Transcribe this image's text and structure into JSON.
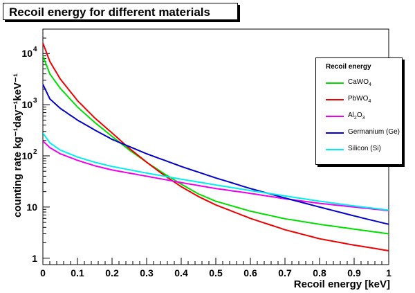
{
  "title": "Recoil energy for different materials",
  "chart_data": {
    "type": "line",
    "title": "Recoil energy for different materials",
    "xlabel": "Recoil energy [keV]",
    "ylabel": "counting rate kg⁻¹day⁻¹keV⁻¹",
    "xlim": [
      0,
      1
    ],
    "ylim": [
      0.75,
      30000
    ],
    "yscale": "log",
    "x_ticks": [
      "0",
      "0.1",
      "0.2",
      "0.3",
      "0.4",
      "0.5",
      "0.6",
      "0.7",
      "0.8",
      "0.9",
      "1"
    ],
    "y_ticks": [
      {
        "value": 1,
        "label": "1"
      },
      {
        "value": 10,
        "label": "10"
      },
      {
        "value": 100,
        "label": "10",
        "exp": "2"
      },
      {
        "value": 1000,
        "label": "10",
        "exp": "3"
      },
      {
        "value": 10000,
        "label": "10",
        "exp": "4"
      }
    ],
    "legend_title": "Recoil energy",
    "legend_position": "right",
    "series": [
      {
        "name": "CaWO4",
        "label_main": "CaWO",
        "label_sub": "4",
        "color": "#00dd00",
        "x": [
          0,
          0.02,
          0.05,
          0.1,
          0.15,
          0.2,
          0.25,
          0.3,
          0.35,
          0.4,
          0.45,
          0.5,
          0.6,
          0.7,
          0.8,
          0.9,
          1.0
        ],
        "y": [
          9000,
          4000,
          2100,
          900,
          450,
          240,
          130,
          75,
          45,
          28,
          18,
          13,
          8.3,
          5.9,
          4.6,
          3.7,
          3.0
        ]
      },
      {
        "name": "PbWO4",
        "label_main": "PbWO",
        "label_sub": "4",
        "color": "#ee0000",
        "x": [
          0,
          0.02,
          0.05,
          0.1,
          0.15,
          0.2,
          0.25,
          0.3,
          0.35,
          0.4,
          0.45,
          0.5,
          0.6,
          0.7,
          0.8,
          0.9,
          1.0
        ],
        "y": [
          16000,
          7000,
          3200,
          1200,
          550,
          280,
          140,
          75,
          42,
          25,
          16,
          11,
          6,
          3.6,
          2.4,
          1.8,
          1.4
        ]
      },
      {
        "name": "Al2O3",
        "label_main": "Al",
        "label_sub": "2",
        "label_mid": "O",
        "label_sub2": "3",
        "color": "#ee00ee",
        "x": [
          0,
          0.02,
          0.05,
          0.1,
          0.15,
          0.2,
          0.3,
          0.4,
          0.5,
          0.6,
          0.7,
          0.8,
          0.9,
          1.0
        ],
        "y": [
          195,
          145,
          110,
          82,
          64,
          53,
          40,
          30,
          23,
          18.5,
          14.5,
          11.8,
          10,
          8.5
        ]
      },
      {
        "name": "Germanium (Ge)",
        "label_main": "Germanium (Ge)",
        "color": "#0000cc",
        "x": [
          0,
          0.02,
          0.05,
          0.1,
          0.15,
          0.2,
          0.3,
          0.4,
          0.5,
          0.6,
          0.7,
          0.8,
          0.9,
          1.0
        ],
        "y": [
          2500,
          1300,
          850,
          500,
          320,
          210,
          110,
          62,
          37,
          23,
          15,
          10,
          6.7,
          4.6
        ]
      },
      {
        "name": "Silicon (Si)",
        "label_main": "Silicon (Si)",
        "color": "#00eeee",
        "x": [
          0,
          0.02,
          0.05,
          0.1,
          0.15,
          0.2,
          0.3,
          0.4,
          0.5,
          0.6,
          0.7,
          0.8,
          0.9,
          1.0
        ],
        "y": [
          280,
          180,
          130,
          95,
          75,
          62,
          46,
          35,
          27,
          21,
          16.5,
          13,
          10.5,
          8.7
        ]
      }
    ]
  },
  "colors": {
    "canvas_background": "#ffffff",
    "frame": "#000000"
  }
}
